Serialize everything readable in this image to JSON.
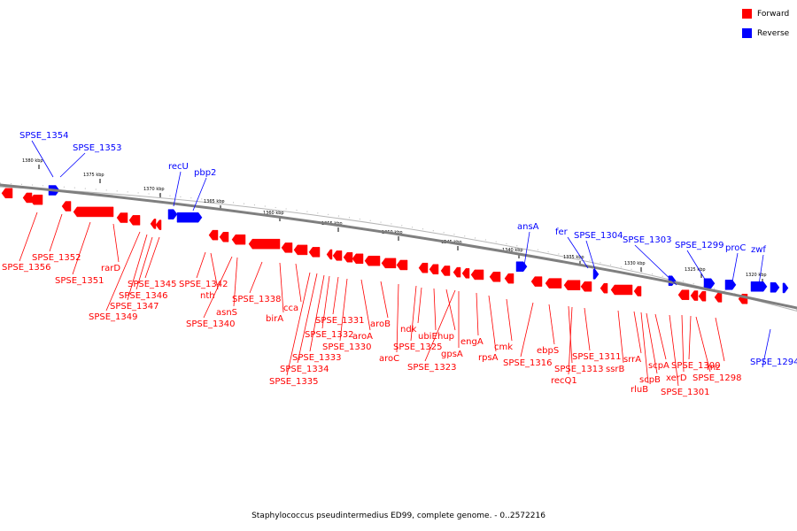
{
  "legend": [
    {
      "label": "Forward",
      "color": "#ff0000"
    },
    {
      "label": "Reverse",
      "color": "#0000ff"
    }
  ],
  "caption": "Staphylococcus pseudintermedius ED99, complete genome. - 0..2572216",
  "colors": {
    "forward": "#ff0000",
    "reverse": "#0000ff",
    "backbone": "#7f7f7f"
  },
  "kbp_ticks": [
    "1380 kbp",
    "1375 kbp",
    "1370 kbp",
    "1365 kbp",
    "1360 kbp",
    "1355 kbp",
    "1350 kbp",
    "1345 kbp",
    "1340 kbp",
    "1335 kbp",
    "1330 kbp",
    "1325 kbp",
    "1320 kbp"
  ],
  "forward_labels": [
    "SPSE_1356",
    "SPSE_1352",
    "SPSE_1351",
    "rarD",
    "SPSE_1349",
    "SPSE_1347",
    "SPSE_1346",
    "SPSE_1345",
    "SPSE_1342",
    "nth",
    "SPSE_1340",
    "asnS",
    "SPSE_1338",
    "birA",
    "cca",
    "SPSE_1335",
    "SPSE_1334",
    "SPSE_1333",
    "SPSE_1332",
    "SPSE_1331",
    "SPSE_1330",
    "aroA",
    "aroB",
    "aroC",
    "SPSE_1325",
    "ndk",
    "ubiE",
    "hup",
    "SPSE_1323",
    "gpsA",
    "engA",
    "rpsA",
    "cmk",
    "SPSE_1316",
    "ebpS",
    "SPSE_1313",
    "recQ1",
    "SPSE_1311",
    "ssrB",
    "srrA",
    "rluB",
    "scpB",
    "scpA",
    "SPSE_1301",
    "xerD",
    "SPSE_1300",
    "SPSE_1298",
    "rnz"
  ],
  "reverse_labels": [
    "SPSE_1354",
    "SPSE_1353",
    "recU",
    "pbp2",
    "ansA",
    "fer",
    "SPSE_1304",
    "SPSE_1303",
    "SPSE_1299",
    "proC",
    "zwf",
    "SPSE_1294"
  ]
}
